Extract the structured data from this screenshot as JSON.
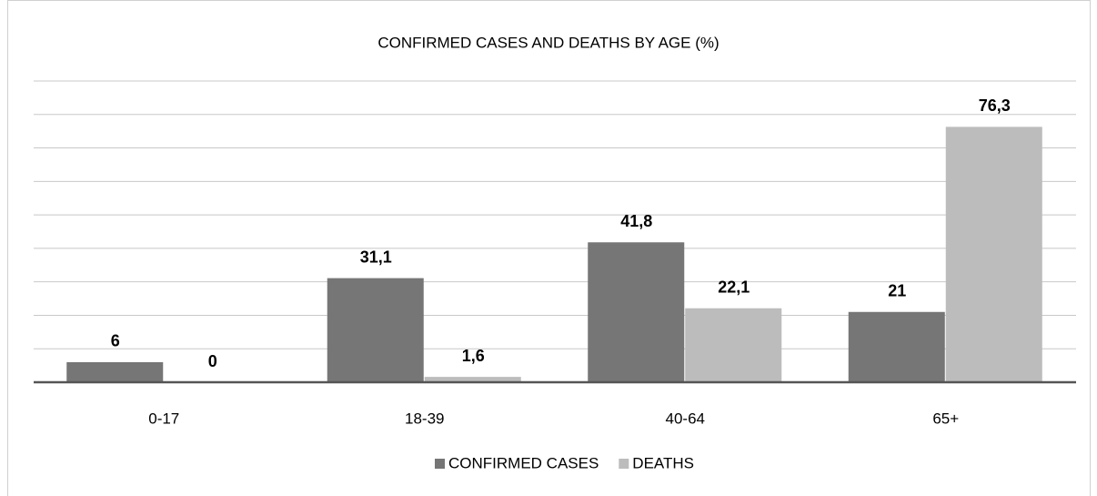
{
  "chart_data": {
    "type": "bar",
    "title": "CONFIRMED CASES AND DEATHS BY AGE (%)",
    "categories": [
      "0-17",
      "18-39",
      "40-64",
      "65+"
    ],
    "series": [
      {
        "name": "CONFIRMED CASES",
        "color": "#767676",
        "values": [
          6,
          31.1,
          41.8,
          21
        ],
        "value_labels": [
          "6",
          "31,1",
          "41,8",
          "21"
        ]
      },
      {
        "name": "DEATHS",
        "color": "#bcbcbc",
        "values": [
          0,
          1.6,
          22.1,
          76.3
        ],
        "value_labels": [
          "0",
          "1,6",
          "22,1",
          "76,3"
        ]
      }
    ],
    "ylim": [
      0,
      90
    ],
    "yticks": [
      0,
      10,
      20,
      30,
      40,
      50,
      60,
      70,
      80,
      90
    ],
    "grid": true,
    "legend": "bottom"
  }
}
